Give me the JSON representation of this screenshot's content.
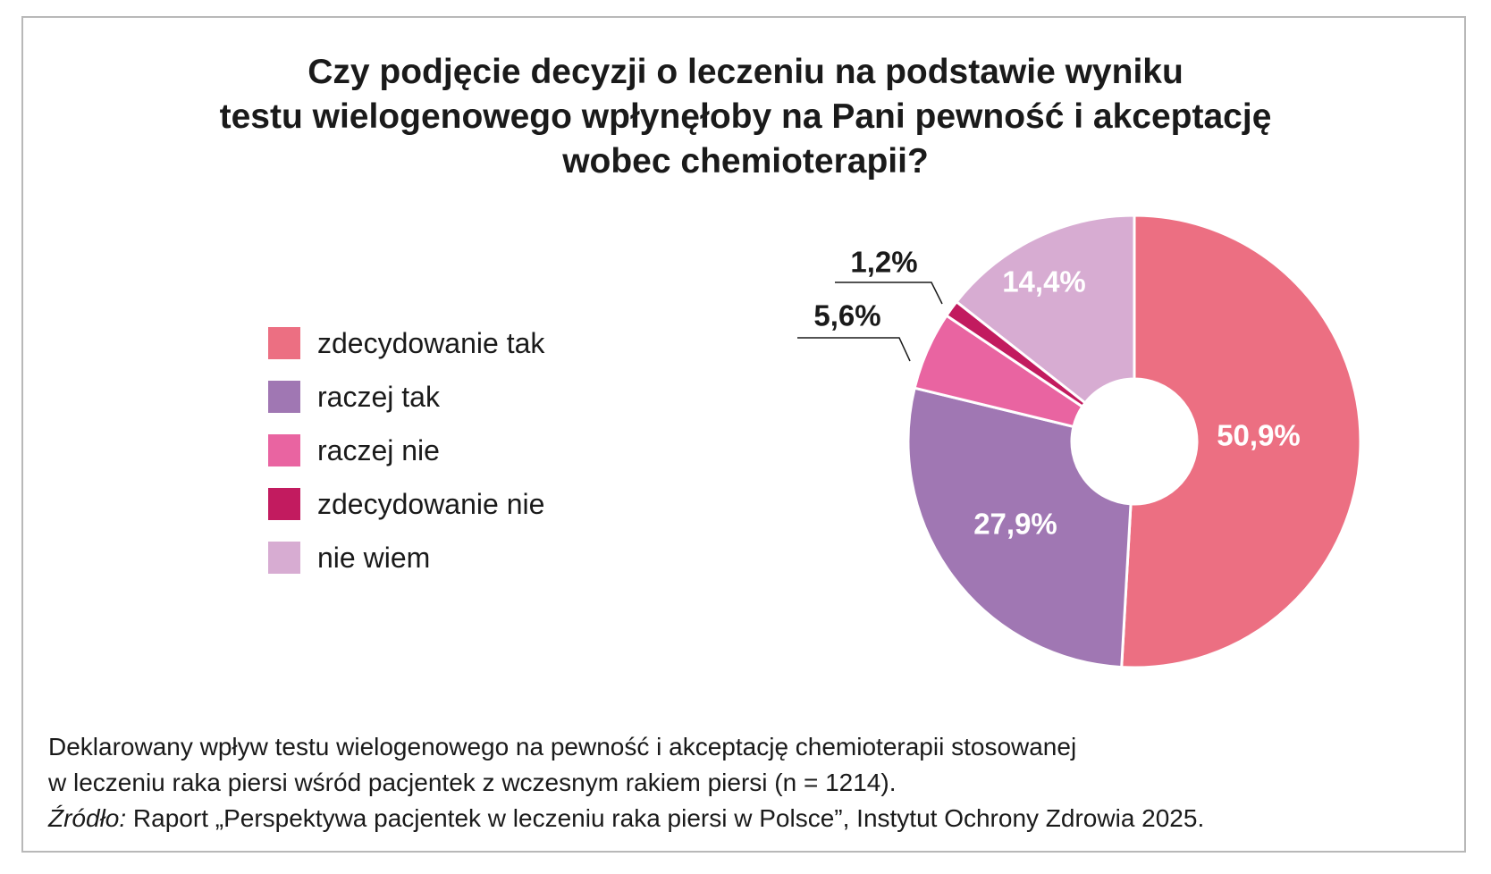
{
  "title_lines": [
    "Czy podjęcie decyzji o leczeniu na podstawie wyniku",
    "testu wielogenowego wpłynęłoby na Pani pewność i akceptację",
    "wobec chemioterapii?"
  ],
  "chart_data": {
    "type": "pie",
    "title": "Czy podjęcie decyzji o leczeniu na podstawie wyniku testu wielogenowego wpłynęłoby na Pani pewność i akceptację wobec chemioterapii?",
    "donut": true,
    "legend_position": "left",
    "slices": [
      {
        "label": "zdecydowanie tak",
        "value": 50.9,
        "display": "50,9%",
        "color": "#ec6f82"
      },
      {
        "label": "raczej tak",
        "value": 27.9,
        "display": "27,9%",
        "color": "#a077b3"
      },
      {
        "label": "raczej nie",
        "value": 5.6,
        "display": "5,6%",
        "color": "#e964a1"
      },
      {
        "label": "zdecydowanie nie",
        "value": 1.2,
        "display": "1,2%",
        "color": "#c21b5f"
      },
      {
        "label": "nie wiem",
        "value": 14.4,
        "display": "14,4%",
        "color": "#d7acd2"
      }
    ]
  },
  "caption": {
    "line1": "Deklarowany wpływ testu wielogenowego na pewność i akceptację chemioterapii stosowanej",
    "line2": "w leczeniu raka piersi wśród pacjentek z wczesnym rakiem piersi (n = 1214).",
    "source_label": "Źródło:",
    "source_text": " Raport „Perspektywa pacjentek w leczeniu raka piersi w Polsce”, Instytut Ochrony Zdrowia 2025."
  }
}
